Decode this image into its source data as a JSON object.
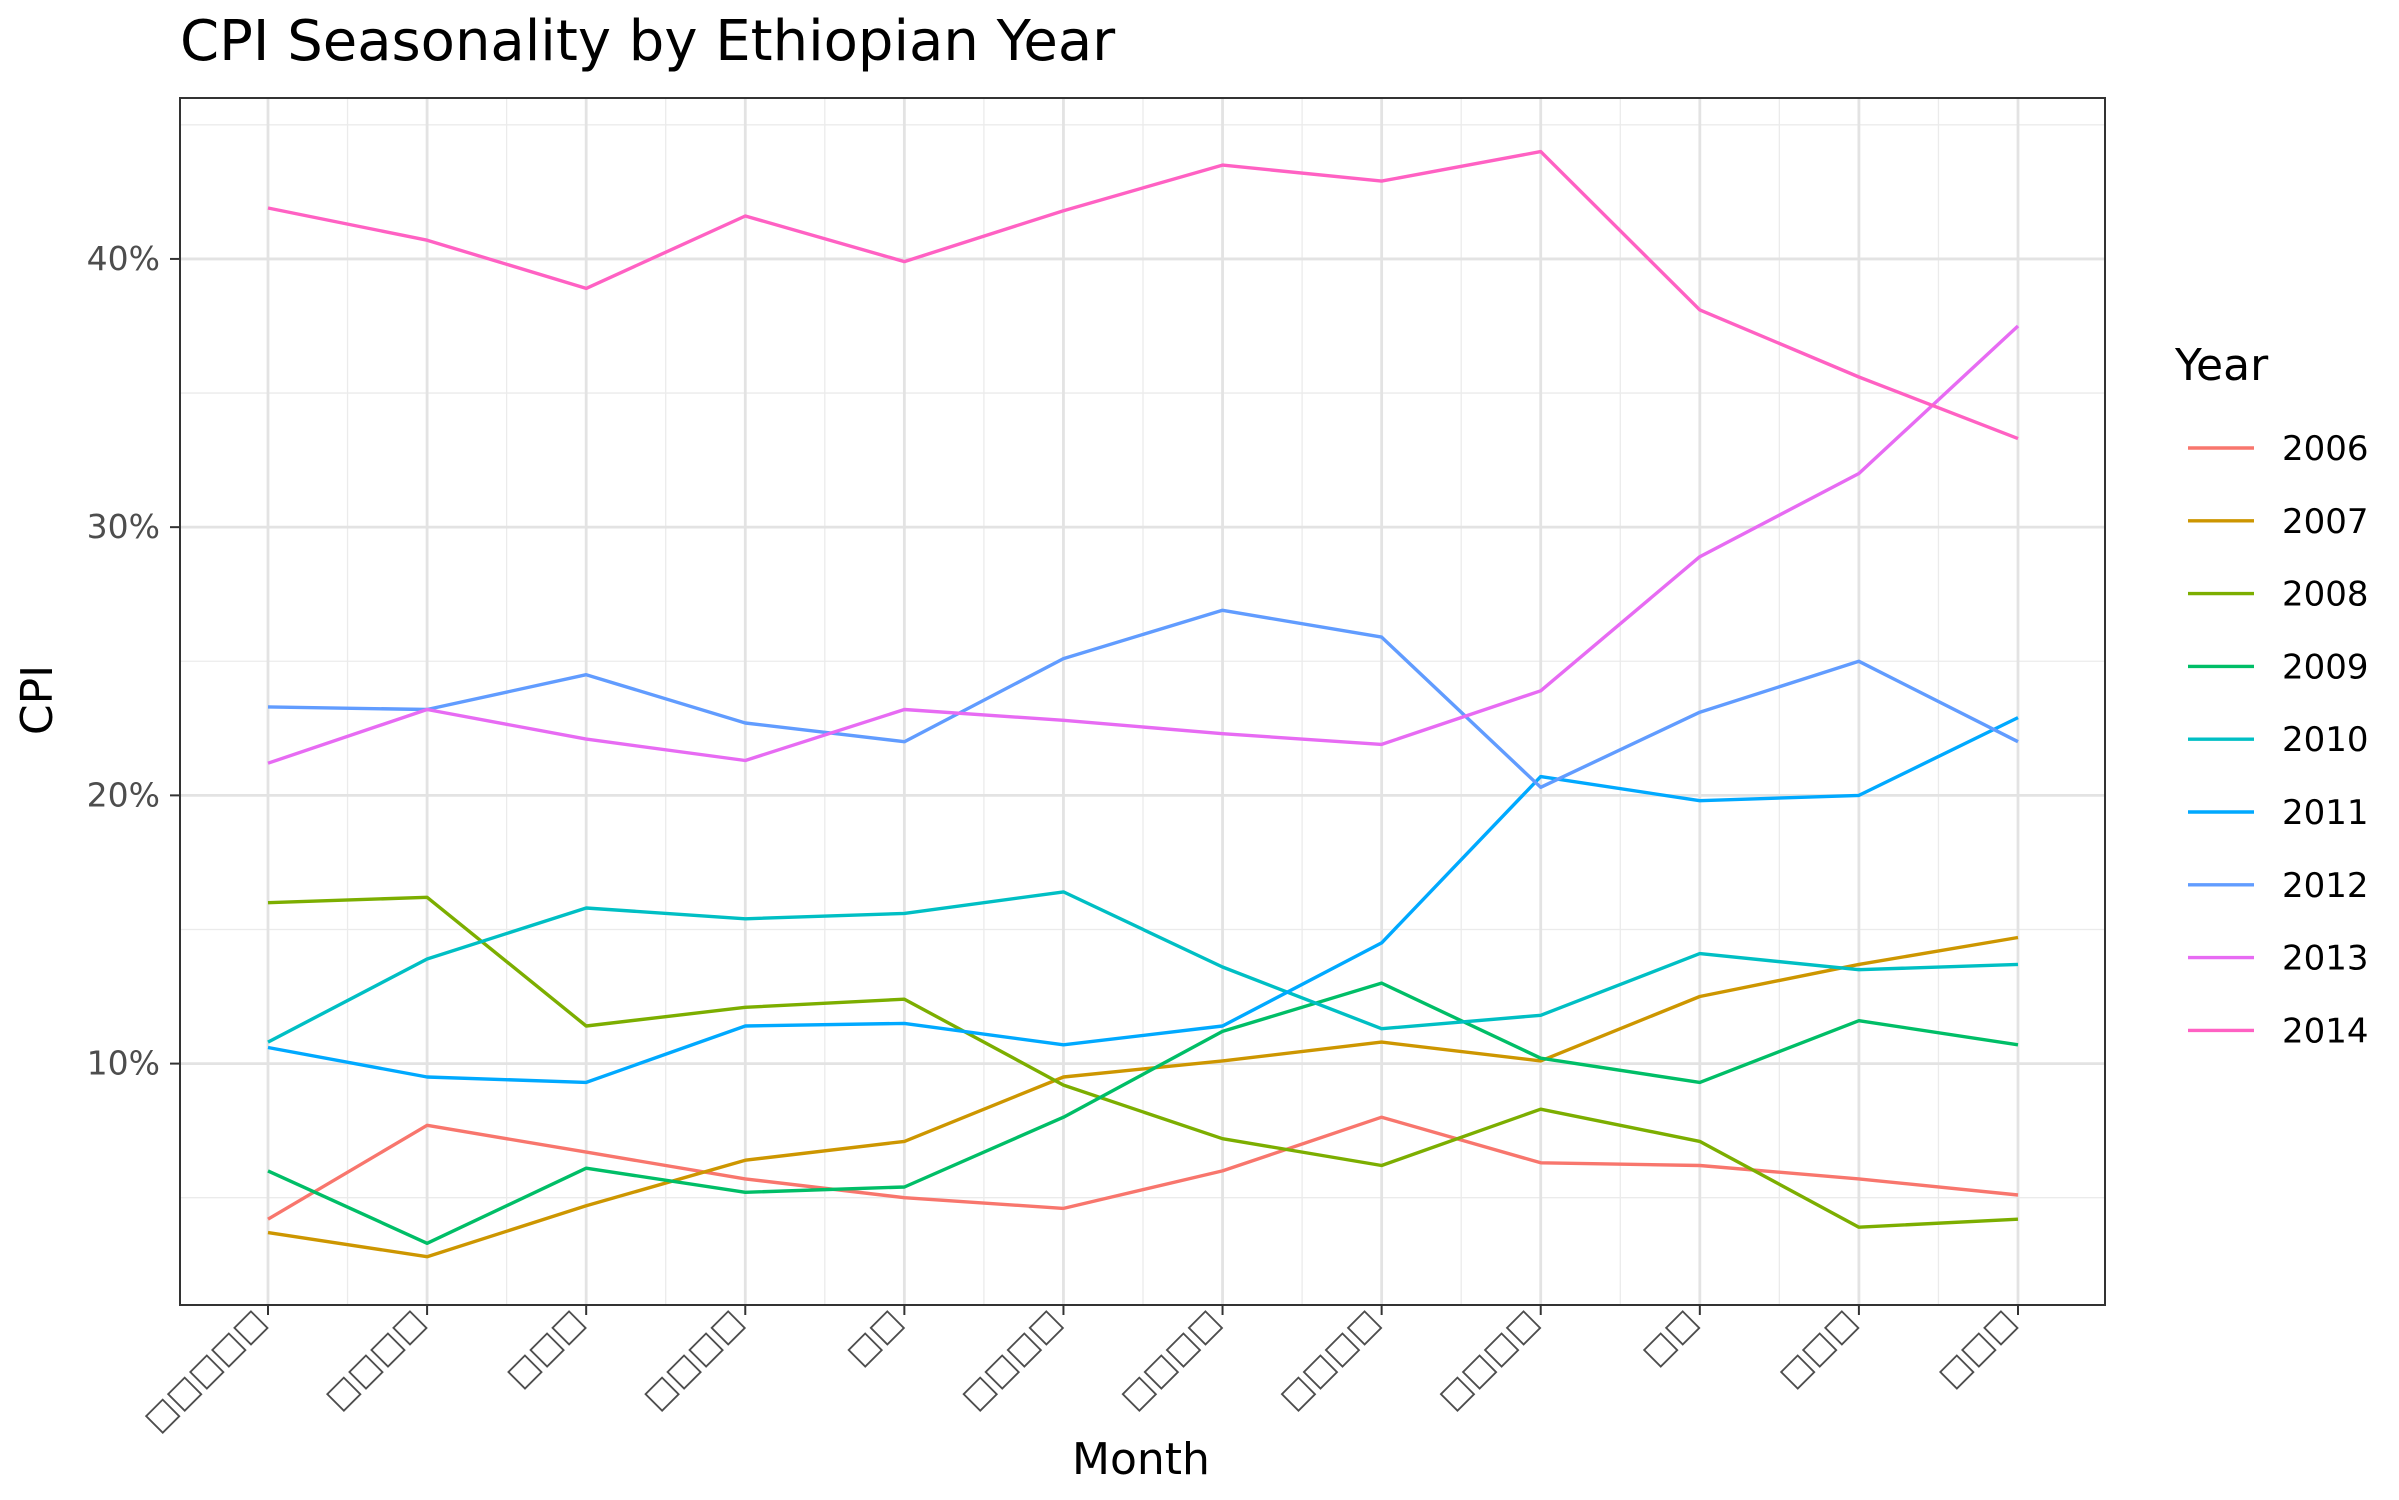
{
  "chart_data": {
    "type": "line",
    "title": "CPI Seasonality by Ethiopian Year",
    "xlabel": "Month",
    "ylabel": "CPI",
    "legend_title": "Year",
    "legend_position": "right",
    "grid": true,
    "ylim": [
      1,
      46
    ],
    "yticks": [
      10,
      20,
      30,
      40
    ],
    "ytick_labels": [
      "10%",
      "20%",
      "30%",
      "40%"
    ],
    "categories": [
      "□□□□□",
      "□□□□",
      "□□□",
      "□□□□",
      "□□",
      "□□□□",
      "□□□□",
      "□□□□",
      "□□□□",
      "□□",
      "□□□",
      "□□□"
    ],
    "series": [
      {
        "name": "2006",
        "color": "#F8766D",
        "values": [
          4.2,
          7.7,
          6.7,
          5.7,
          5.0,
          4.6,
          6.0,
          8.0,
          6.3,
          6.2,
          5.7,
          5.1
        ]
      },
      {
        "name": "2007",
        "color": "#CD9600",
        "values": [
          3.7,
          2.8,
          4.7,
          6.4,
          7.1,
          9.5,
          10.1,
          10.8,
          10.1,
          12.5,
          13.7,
          14.7
        ]
      },
      {
        "name": "2008",
        "color": "#7CAE00",
        "values": [
          16.0,
          16.2,
          11.4,
          12.1,
          12.4,
          9.2,
          7.2,
          6.2,
          8.3,
          7.1,
          3.9,
          4.2
        ]
      },
      {
        "name": "2009",
        "color": "#00BE67",
        "values": [
          6.0,
          3.3,
          6.1,
          5.2,
          5.4,
          8.0,
          11.2,
          13.0,
          10.2,
          9.3,
          11.6,
          10.7
        ]
      },
      {
        "name": "2010",
        "color": "#00BFC4",
        "values": [
          10.8,
          13.9,
          15.8,
          15.4,
          15.6,
          16.4,
          13.6,
          11.3,
          11.8,
          14.1,
          13.5,
          13.7
        ]
      },
      {
        "name": "2011",
        "color": "#00A9FF",
        "values": [
          10.6,
          9.5,
          9.3,
          11.4,
          11.5,
          10.7,
          11.4,
          14.5,
          20.7,
          19.8,
          20.0,
          22.9
        ]
      },
      {
        "name": "2012",
        "color": "#619CFF",
        "values": [
          23.3,
          23.2,
          24.5,
          22.7,
          22.0,
          25.1,
          26.9,
          25.9,
          20.3,
          23.1,
          25.0,
          22.0
        ]
      },
      {
        "name": "2013",
        "color": "#E76BF3",
        "values": [
          21.2,
          23.2,
          22.1,
          21.3,
          23.2,
          22.8,
          22.3,
          21.9,
          23.9,
          28.9,
          32.0,
          37.5
        ]
      },
      {
        "name": "2014",
        "color": "#FF61C3",
        "values": [
          41.9,
          40.7,
          38.9,
          41.6,
          39.9,
          41.8,
          43.5,
          42.9,
          44.0,
          38.1,
          35.6,
          33.3
        ]
      }
    ]
  }
}
